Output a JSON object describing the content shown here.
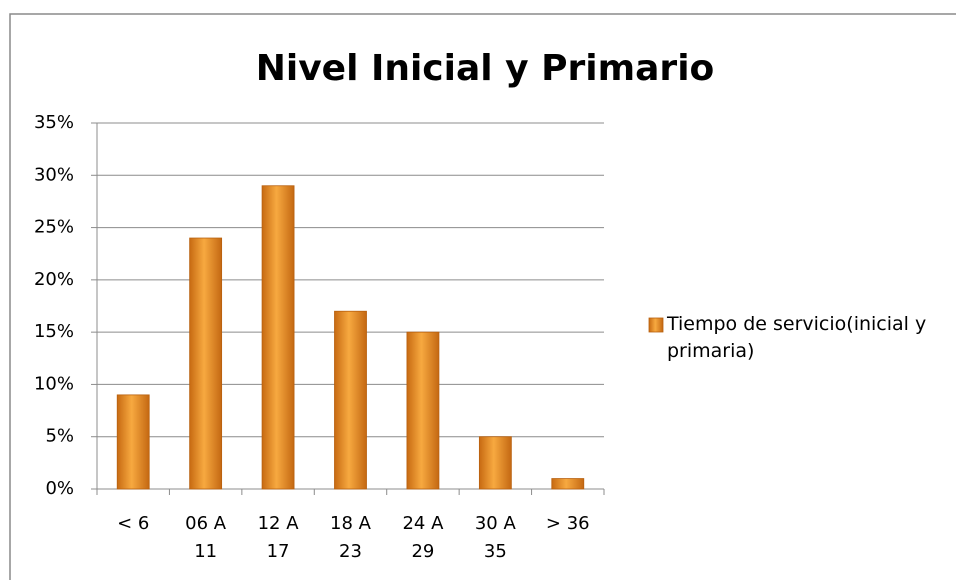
{
  "chart_data": {
    "type": "bar",
    "title": "Nivel Inicial y Primario",
    "categories": [
      "< 6",
      "06 A 11",
      "12 A 17",
      "18 A 23",
      "24 A 29",
      "30 A 35",
      "> 36"
    ],
    "series": [
      {
        "name": "Tiempo de servicio(inicial y primaria)",
        "color": "#e8912a",
        "values": [
          9,
          24,
          29,
          17,
          15,
          5,
          1
        ]
      }
    ],
    "ylim": [
      0,
      35
    ],
    "yticks": [
      {
        "value": 0,
        "label": "0%"
      },
      {
        "value": 5,
        "label": "5%"
      },
      {
        "value": 10,
        "label": "10%"
      },
      {
        "value": 15,
        "label": "15%"
      },
      {
        "value": 20,
        "label": "20%"
      },
      {
        "value": 25,
        "label": "25%"
      },
      {
        "value": 30,
        "label": "30%"
      },
      {
        "value": 35,
        "label": "35%"
      }
    ],
    "grid": true,
    "legend": "right"
  }
}
